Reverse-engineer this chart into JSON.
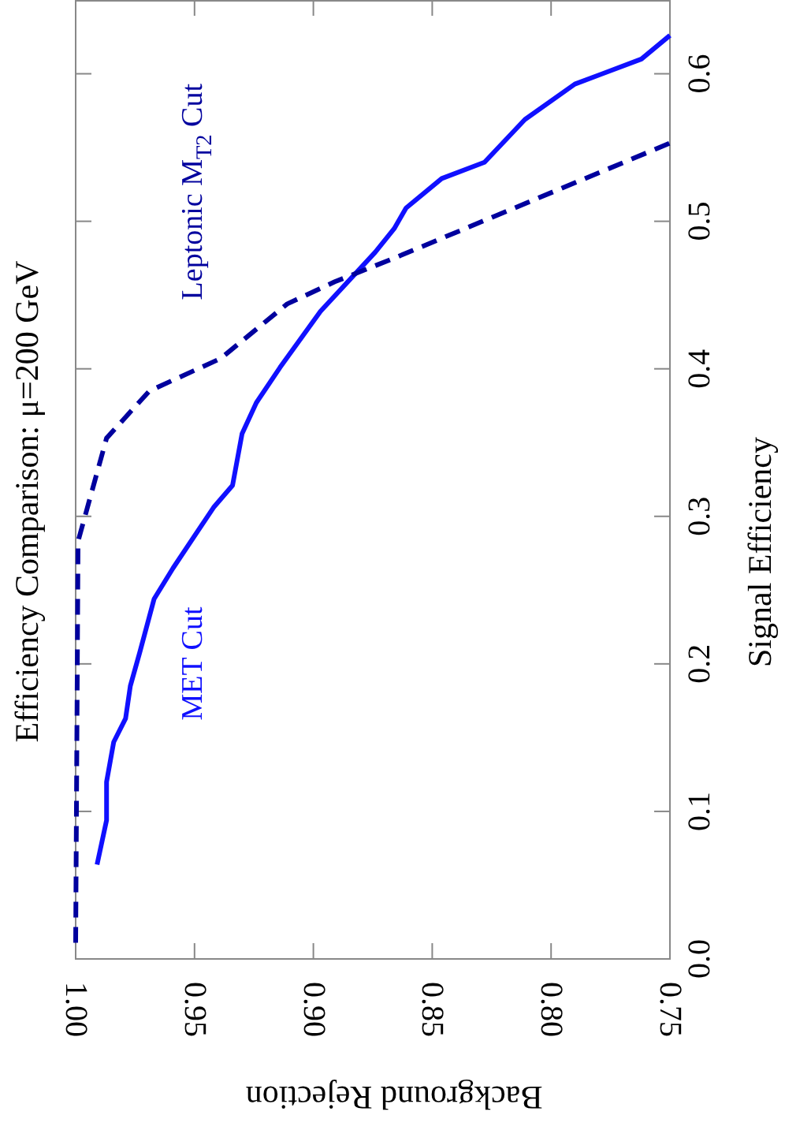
{
  "chart_data": {
    "type": "line",
    "title": "Efficiency Comparison: μ=200 GeV",
    "xlabel": "Background Rejection",
    "ylabel": "Signal Efficiency",
    "xlim": [
      1.0,
      0.75
    ],
    "xticks": [
      {
        "value": 1.0,
        "label": "1.00"
      },
      0.95,
      {
        "value": 0.9,
        "label": "0.90"
      },
      0.85,
      {
        "value": 0.8,
        "label": "0.80"
      },
      0.75
    ],
    "ylim": [
      0,
      0.65
    ],
    "yticks": [
      {
        "value": 0,
        "label": "0.0"
      },
      0.1,
      0.2,
      0.3,
      0.4,
      0.5,
      0.6
    ],
    "series": [
      {
        "name": "MET Cut",
        "color": "#1010ff",
        "line_style": "solid",
        "x": [
          0.991,
          0.987,
          0.987,
          0.984,
          0.979,
          0.977,
          0.973,
          0.967,
          0.959,
          0.942,
          0.934,
          0.93,
          0.924,
          0.914,
          0.897,
          0.874,
          0.866,
          0.861,
          0.846,
          0.828,
          0.811,
          0.79,
          0.762,
          0.75
        ],
        "values": [
          0.064,
          0.094,
          0.12,
          0.147,
          0.163,
          0.185,
          0.208,
          0.244,
          0.265,
          0.306,
          0.321,
          0.356,
          0.377,
          0.401,
          0.439,
          0.479,
          0.495,
          0.509,
          0.529,
          0.54,
          0.569,
          0.593,
          0.61,
          0.626
        ]
      },
      {
        "name": "Leptonic M$_{T2}$ Cut",
        "color": "#00009e",
        "line_style": "dashed",
        "x": [
          1.0,
          0.999,
          0.987,
          0.969,
          0.939,
          0.911,
          0.891,
          0.866,
          0.75
        ],
        "values": [
          0.011,
          0.283,
          0.353,
          0.385,
          0.407,
          0.444,
          0.459,
          0.475,
          0.553
        ]
      }
    ]
  }
}
